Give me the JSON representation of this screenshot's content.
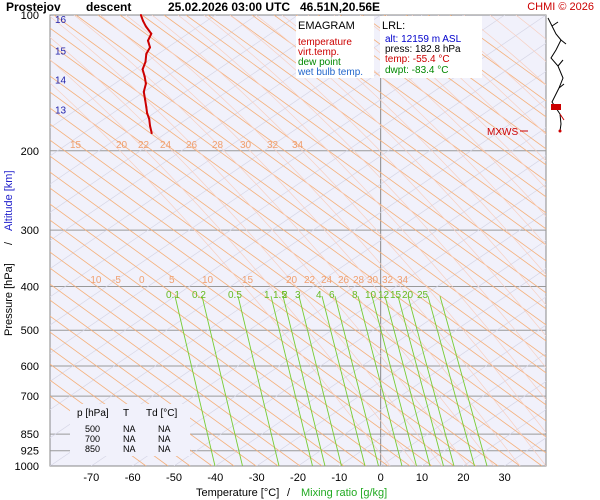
{
  "header": {
    "station": "Prostejov",
    "mode": "descent",
    "datetime": "25.02.2026 03:00 UTC",
    "coords": "46.51N,20.56E",
    "credit": "CHMI © 2026"
  },
  "legend": {
    "title": "EMAGRAM",
    "items": [
      {
        "label": "temperature",
        "color": "#cc0000"
      },
      {
        "label": "virt.temp.",
        "color": "#cc0000"
      },
      {
        "label": "dew point",
        "color": "#008800"
      },
      {
        "label": "wet bulb temp.",
        "color": "#2266cc"
      }
    ]
  },
  "lrl": {
    "title": "LRL:",
    "alt": "alt: 12159 m ASL",
    "press": "press: 182.8 hPa",
    "temp": "temp: -55.4 °C",
    "dwpt": "dwpt: -83.4 °C"
  },
  "mxws": {
    "label": "MXWS"
  },
  "stations_table": {
    "headers": [
      "p [hPa]",
      "T",
      "Td [°C]"
    ],
    "rows": [
      [
        "500",
        "NA",
        "NA"
      ],
      [
        "700",
        "NA",
        "NA"
      ],
      [
        "850",
        "NA",
        "NA"
      ]
    ]
  },
  "chart_data": {
    "type": "line",
    "title": "Prostejov descent 25.02.2026 03:00 UTC 46.51N,20.56E",
    "xlabel": "Temperature [°C]",
    "xlabel2": "Mixing ratio [g/kg]",
    "ylabel": "Pressure [hPa]",
    "ylabel2": "Altitude [km]",
    "xlim": [
      -80,
      40
    ],
    "ylim": [
      1000,
      100
    ],
    "y_scale": "log",
    "x_ticks": [
      -70,
      -60,
      -50,
      -40,
      -30,
      -20,
      -10,
      0,
      10,
      20,
      30
    ],
    "y_ticks": [
      100,
      200,
      300,
      400,
      500,
      600,
      700,
      850,
      925,
      1000
    ],
    "altitude_ticks": [
      {
        "km": 16,
        "p": 102
      },
      {
        "km": 15,
        "p": 120
      },
      {
        "km": 14,
        "p": 139
      },
      {
        "km": 13,
        "p": 162
      }
    ],
    "dry_adiabat_labels": [
      15,
      20,
      22,
      24,
      26,
      28,
      30,
      32,
      34
    ],
    "wet_adiabat_labels": [
      -10,
      -5,
      0,
      5,
      10,
      15,
      20,
      22,
      24,
      26,
      28,
      30,
      32,
      34
    ],
    "mixing_ratio_labels": [
      0.1,
      0.2,
      0.5,
      1,
      1.5,
      2,
      3,
      4,
      6,
      8,
      10,
      12,
      15,
      20,
      25
    ],
    "series": [
      {
        "name": "temperature",
        "color": "#cc0000",
        "points": [
          {
            "p": 100,
            "t": -58.0
          },
          {
            "p": 103,
            "t": -57.5
          },
          {
            "p": 106,
            "t": -56.8
          },
          {
            "p": 110,
            "t": -55.5
          },
          {
            "p": 114,
            "t": -56.3
          },
          {
            "p": 118,
            "t": -55.8
          },
          {
            "p": 122,
            "t": -56.7
          },
          {
            "p": 127,
            "t": -56.9
          },
          {
            "p": 132,
            "t": -57.6
          },
          {
            "p": 137,
            "t": -57.1
          },
          {
            "p": 142,
            "t": -56.8
          },
          {
            "p": 148,
            "t": -57.3
          },
          {
            "p": 154,
            "t": -57.0
          },
          {
            "p": 160,
            "t": -56.7
          },
          {
            "p": 165,
            "t": -56.5
          },
          {
            "p": 170,
            "t": -56.0
          },
          {
            "p": 176,
            "t": -55.8
          },
          {
            "p": 182.8,
            "t": -55.4
          }
        ]
      }
    ]
  }
}
